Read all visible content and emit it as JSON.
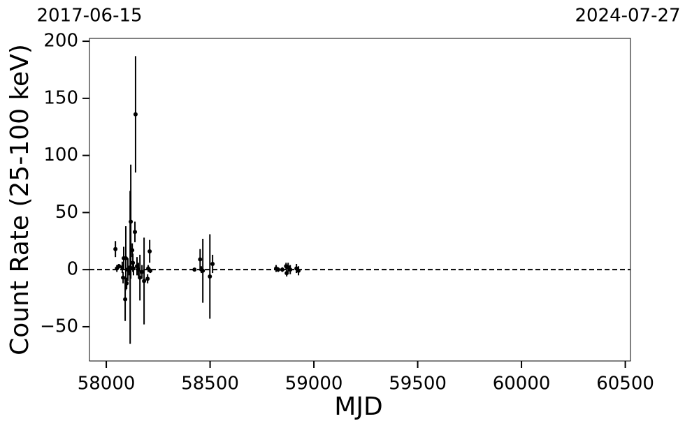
{
  "chart_data": {
    "type": "errorbar",
    "xlabel": "MJD",
    "ylabel": "Count Rate (25-100 keV)",
    "xlim": [
      57919,
      60525
    ],
    "ylim": [
      -80,
      202.5
    ],
    "xticks": [
      58000,
      58500,
      59000,
      59500,
      60000,
      60500
    ],
    "yticks": [
      {
        "value": -50,
        "label": "−50"
      },
      0,
      50,
      100,
      150,
      200
    ],
    "x2ticks": [
      {
        "value": 57919,
        "label": "2017-06-15"
      },
      {
        "value": 60518,
        "label": "2024-07-27"
      }
    ],
    "hline": 0,
    "series": [
      {
        "color": "#000000",
        "x": [
          58044,
          58051,
          58061,
          58077,
          58081,
          58084,
          58091,
          58094,
          58098,
          58104,
          58111,
          58118,
          58115,
          58125,
          58128,
          58131,
          58138,
          58141,
          58148,
          58155,
          58162,
          58172,
          58182,
          58199,
          58202,
          58209,
          58212,
          58425,
          58452,
          58458,
          58465,
          58499,
          58512,
          58818,
          58828,
          58848,
          58866,
          58869,
          58876,
          58886,
          58916,
          58926
        ],
        "values": [
          18,
          1,
          3,
          2,
          -7,
          10,
          -26,
          10,
          -12,
          0,
          -1,
          42,
          2,
          17,
          6,
          1,
          33,
          136,
          3,
          0,
          -7,
          -2,
          -10,
          -8,
          1,
          16,
          -1,
          0,
          9,
          0,
          -1,
          -6,
          5,
          1,
          0,
          0,
          3,
          -3,
          2,
          0,
          1,
          -1
        ],
        "errors": [
          7,
          3,
          2,
          5,
          5,
          10,
          19,
          28,
          5,
          10,
          4,
          50,
          67,
          6,
          8,
          6,
          9,
          51,
          8,
          6,
          20,
          6,
          38,
          4,
          3,
          10,
          2,
          1,
          9,
          3,
          28,
          37,
          8,
          3,
          2,
          2,
          3,
          3,
          4,
          4,
          4,
          4
        ]
      }
    ]
  }
}
